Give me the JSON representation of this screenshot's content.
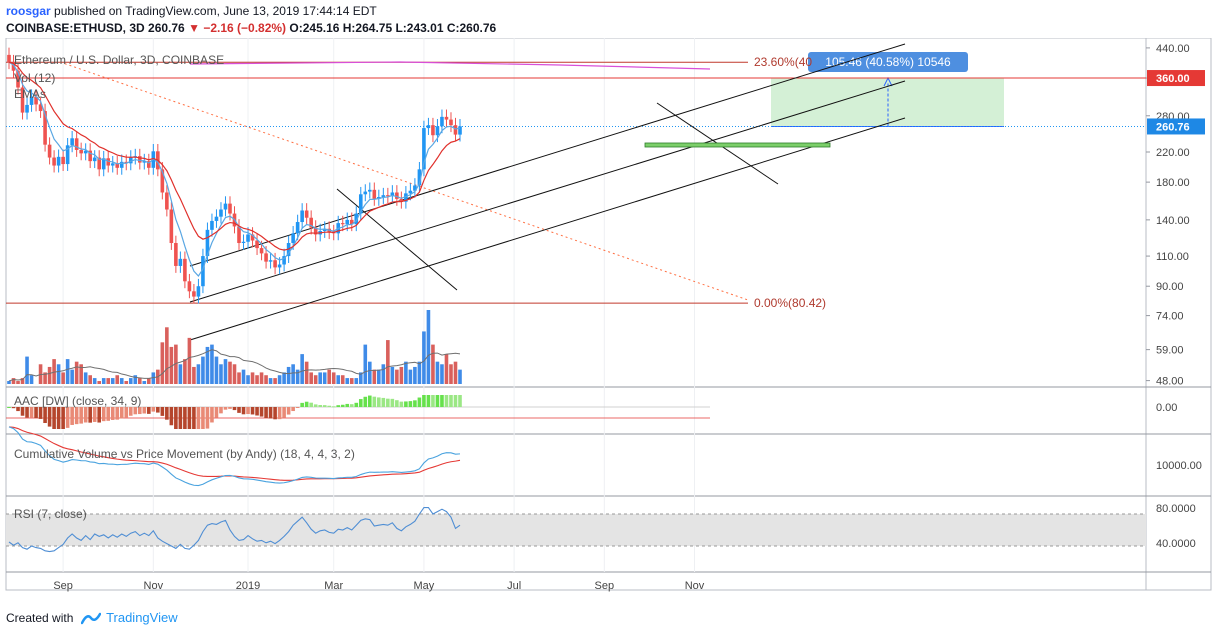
{
  "header": {
    "user": "roosgar",
    "published_text": "published on TradingView.com, June 13, 2019 17:44:14 EDT",
    "symbol": "COINBASE:ETHUSD, 3D",
    "last": "260.76",
    "change": "−2.16 (−0.82%)",
    "ohlc": "O:245.16 H:264.75 L:243.01 C:260.76"
  },
  "footer": {
    "created_with": "Created with",
    "brand": "TradingView"
  },
  "colors": {
    "up": "#2196f3",
    "down": "#ef5350",
    "vol_up": "#3f8be8",
    "vol_down": "#d9605c",
    "ema_fast": "#5aa7e3",
    "ema_slow": "#e0302b",
    "ma_vol": "#707070",
    "level_360": "#e53935",
    "level_260": "#2196f3",
    "fib": "#ff7043",
    "aac_pos_strong": "#66e14c",
    "aac_pos_weak": "#9be785",
    "aac_neg_strong": "#b5452c",
    "aac_neg_weak": "#e98a76",
    "rsi": "#4f8ed4",
    "cvpm_a": "#4aa3df",
    "cvpm_b": "#e53935"
  },
  "chart_data": {
    "type": "candlestick",
    "main_labels": [
      "Ethereum / U.S. Dollar, 3D, COINBASE",
      "Vol (12)",
      "EMAs"
    ],
    "x_ticks": [
      {
        "label": "Sep",
        "idx": 12
      },
      {
        "label": "Nov",
        "idx": 32
      },
      {
        "label": "2019",
        "idx": 53
      },
      {
        "label": "Mar",
        "idx": 72
      },
      {
        "label": "May",
        "idx": 92
      },
      {
        "label": "Jul",
        "idx": 112
      },
      {
        "label": "Sep",
        "idx": 132
      },
      {
        "label": "Nov",
        "idx": 152
      }
    ],
    "y_ticks": [
      440,
      360,
      280,
      220,
      180,
      140,
      110,
      90,
      74,
      59,
      48
    ],
    "y_tick_labels": [
      "440.00",
      "360.00",
      "280.00",
      "220.00",
      "180.00",
      "140.00",
      "110.00",
      "90.00",
      "74.00",
      "59.00",
      "48.00"
    ],
    "price_range": [
      46,
      470
    ],
    "price_labels": [
      {
        "label": "360.00",
        "value": 360
      },
      {
        "label": "260.76",
        "value": 260.76
      }
    ],
    "fib_labels": [
      "23.60%(40",
      "0.00%(80.42)"
    ],
    "fib_levels": [
      400,
      80.42
    ],
    "measure_label": "105.46 (40.58%) 10546",
    "close": [
      400,
      378,
      338,
      286,
      301,
      318,
      302,
      289,
      231,
      212,
      201,
      213,
      203,
      230,
      241,
      223,
      218,
      222,
      207,
      212,
      196,
      211,
      201,
      204,
      198,
      206,
      204,
      212,
      214,
      205,
      207,
      198,
      221,
      196,
      168,
      150,
      120,
      103,
      108,
      93,
      87,
      84,
      90,
      110,
      131,
      139,
      143,
      150,
      156,
      146,
      134,
      120,
      121,
      127,
      122,
      116,
      112,
      106,
      107,
      102,
      104,
      110,
      120,
      128,
      138,
      149,
      142,
      133,
      127,
      130,
      132,
      129,
      128,
      137,
      136,
      140,
      136,
      146,
      166,
      169,
      171,
      161,
      163,
      165,
      164,
      168,
      161,
      158,
      167,
      170,
      176,
      196,
      258,
      263,
      246,
      261,
      278,
      273,
      263,
      247,
      261
    ],
    "volume": [
      49,
      50,
      49,
      50,
      58,
      51,
      48,
      55,
      52,
      54,
      57,
      55,
      52,
      57,
      53,
      56,
      55,
      52,
      51,
      50,
      49,
      50,
      50,
      50,
      51,
      50,
      49,
      50,
      51,
      50,
      49,
      50,
      52,
      53,
      64,
      71,
      62,
      63,
      55,
      57,
      66,
      54,
      55,
      58,
      62,
      63,
      58,
      55,
      57,
      56,
      55,
      52,
      53,
      51,
      52,
      51,
      52,
      51,
      50,
      50,
      51,
      52,
      54,
      55,
      53,
      59,
      56,
      52,
      51,
      52,
      52,
      53,
      52,
      51,
      51,
      50,
      50,
      50,
      52,
      63,
      56,
      53,
      53,
      55,
      65,
      54,
      53,
      54,
      56,
      53,
      54,
      56,
      69,
      80,
      63,
      56,
      55,
      59,
      55,
      56,
      53
    ],
    "panes": [
      {
        "label": "AAC [DW] (close, 34, 9)",
        "tick": "0.00"
      },
      {
        "label": "Cumulative Volume vs Price Movement (by Andy) (18, 4, 4, 3, 2)",
        "tick": "10000.00"
      },
      {
        "label": "RSI (7, close)",
        "ticks": [
          "80.0000",
          "40.0000"
        ],
        "band": [
          30,
          70
        ]
      }
    ],
    "rsi": [
      45,
      41,
      44,
      38,
      36,
      40,
      38,
      37,
      34,
      33,
      34,
      38,
      42,
      50,
      55,
      50,
      47,
      53,
      48,
      55,
      52,
      54,
      50,
      54,
      51,
      55,
      52,
      56,
      58,
      53,
      56,
      53,
      59,
      50,
      46,
      43,
      40,
      37,
      42,
      37,
      36,
      41,
      47,
      58,
      66,
      68,
      67,
      70,
      72,
      60,
      52,
      47,
      48,
      53,
      49,
      46,
      47,
      44,
      46,
      43,
      47,
      52,
      58,
      66,
      71,
      76,
      69,
      61,
      56,
      59,
      60,
      57,
      56,
      61,
      60,
      63,
      60,
      66,
      72,
      74,
      73,
      65,
      66,
      67,
      66,
      69,
      62,
      59,
      64,
      67,
      71,
      80,
      88,
      88,
      80,
      83,
      86,
      83,
      76,
      62,
      66
    ]
  }
}
